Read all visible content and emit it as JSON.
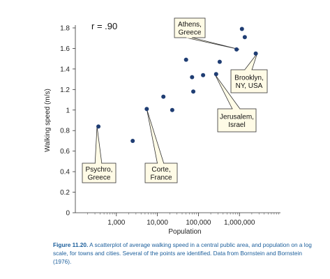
{
  "chart_data": {
    "type": "scatter",
    "xlabel": "Population",
    "ylabel": "Walking speed (m/s)",
    "x_scale": "log",
    "xlim": [
      100,
      10000000
    ],
    "ylim": [
      0,
      1.8
    ],
    "x_ticks": [
      1000,
      10000,
      100000,
      1000000
    ],
    "x_tick_labels": [
      "1,000",
      "10,000",
      "100,000",
      "1,000,000"
    ],
    "y_ticks": [
      0,
      0.2,
      0.4,
      0.6,
      0.8,
      1,
      1.2,
      1.4,
      1.6,
      1.8
    ],
    "y_tick_labels": [
      "0",
      "0.2",
      "0.4",
      "0.6",
      "0.8",
      "1",
      "1.2",
      "1.4",
      "1.6",
      "1.8"
    ],
    "annotation": "r = .90",
    "points": [
      {
        "x": 365,
        "y": 0.84
      },
      {
        "x": 2500,
        "y": 0.7
      },
      {
        "x": 5500,
        "y": 1.01
      },
      {
        "x": 14000,
        "y": 1.13
      },
      {
        "x": 23000,
        "y": 1.0
      },
      {
        "x": 50000,
        "y": 1.49
      },
      {
        "x": 70000,
        "y": 1.32
      },
      {
        "x": 75000,
        "y": 1.18
      },
      {
        "x": 130000,
        "y": 1.34
      },
      {
        "x": 270000,
        "y": 1.35
      },
      {
        "x": 330000,
        "y": 1.47
      },
      {
        "x": 850000,
        "y": 1.59
      },
      {
        "x": 1150000,
        "y": 1.79
      },
      {
        "x": 1350000,
        "y": 1.71
      },
      {
        "x": 2500000,
        "y": 1.55
      }
    ],
    "callouts": [
      {
        "lines": [
          "Psychro,",
          "Greece"
        ],
        "point_index": 0
      },
      {
        "lines": [
          "Corte,",
          "France"
        ],
        "point_index": 2
      },
      {
        "lines": [
          "Athens,",
          "Greece"
        ],
        "point_index": 11
      },
      {
        "lines": [
          "Brooklyn,",
          "NY, USA"
        ],
        "point_index": 14
      },
      {
        "lines": [
          "Jerusalem,",
          "Israel"
        ],
        "point_index": 9
      }
    ]
  },
  "caption": {
    "figure_label": "Figure 11.20.",
    "text": " A scatterplot of average walking speed in a central public area, and population on a log scale, for towns and cities. Several of the points are identified. Data from Bornstein and Bornstein (1976)."
  },
  "colors": {
    "point": "#1f3d73",
    "callout_fill": "#fffbe6",
    "caption_accent": "#1b5e9b"
  }
}
